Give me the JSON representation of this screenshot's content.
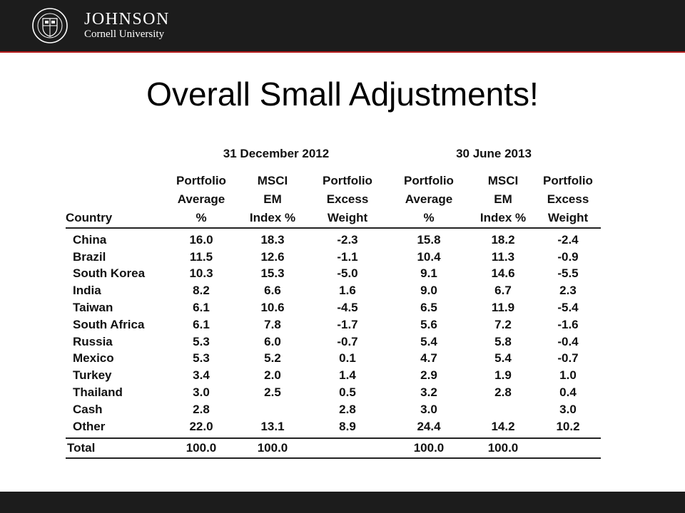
{
  "header": {
    "logo_main": "JOHNSON",
    "logo_sub": "Cornell University"
  },
  "slide": {
    "title": "Overall Small Adjustments!"
  },
  "table": {
    "groups": [
      "31 December 2012",
      "30 June 2013"
    ],
    "country_header": "Country",
    "column_headers": [
      [
        "Portfolio",
        "Average",
        "%"
      ],
      [
        "MSCI",
        "EM",
        "Index %"
      ],
      [
        "Portfolio",
        "Excess",
        "Weight"
      ],
      [
        "Portfolio",
        "Average",
        "%"
      ],
      [
        "MSCI",
        "EM",
        "Index %"
      ],
      [
        "Portfolio",
        "Excess",
        "Weight"
      ]
    ],
    "rows": [
      {
        "country": "China",
        "values": [
          "16.0",
          "18.3",
          "-2.3",
          "15.8",
          "18.2",
          "-2.4"
        ]
      },
      {
        "country": "Brazil",
        "values": [
          "11.5",
          "12.6",
          "-1.1",
          "10.4",
          "11.3",
          "-0.9"
        ]
      },
      {
        "country": "South Korea",
        "values": [
          "10.3",
          "15.3",
          "-5.0",
          "9.1",
          "14.6",
          "-5.5"
        ]
      },
      {
        "country": "India",
        "values": [
          "8.2",
          "6.6",
          "1.6",
          "9.0",
          "6.7",
          "2.3"
        ]
      },
      {
        "country": "Taiwan",
        "values": [
          "6.1",
          "10.6",
          "-4.5",
          "6.5",
          "11.9",
          "-5.4"
        ]
      },
      {
        "country": "South Africa",
        "values": [
          "6.1",
          "7.8",
          "-1.7",
          "5.6",
          "7.2",
          "-1.6"
        ]
      },
      {
        "country": "Russia",
        "values": [
          "5.3",
          "6.0",
          "-0.7",
          "5.4",
          "5.8",
          "-0.4"
        ]
      },
      {
        "country": "Mexico",
        "values": [
          "5.3",
          "5.2",
          "0.1",
          "4.7",
          "5.4",
          "-0.7"
        ]
      },
      {
        "country": "Turkey",
        "values": [
          "3.4",
          "2.0",
          "1.4",
          "2.9",
          "1.9",
          "1.0"
        ]
      },
      {
        "country": "Thailand",
        "values": [
          "3.0",
          "2.5",
          "0.5",
          "3.2",
          "2.8",
          "0.4"
        ]
      },
      {
        "country": "Cash",
        "values": [
          "2.8",
          "",
          "2.8",
          "3.0",
          "",
          "3.0"
        ]
      },
      {
        "country": "Other",
        "values": [
          "22.0",
          "13.1",
          "8.9",
          "24.4",
          "14.2",
          "10.2"
        ]
      }
    ],
    "total": {
      "country": "Total",
      "values": [
        "100.0",
        "100.0",
        "",
        "100.0",
        "100.0",
        ""
      ]
    }
  }
}
